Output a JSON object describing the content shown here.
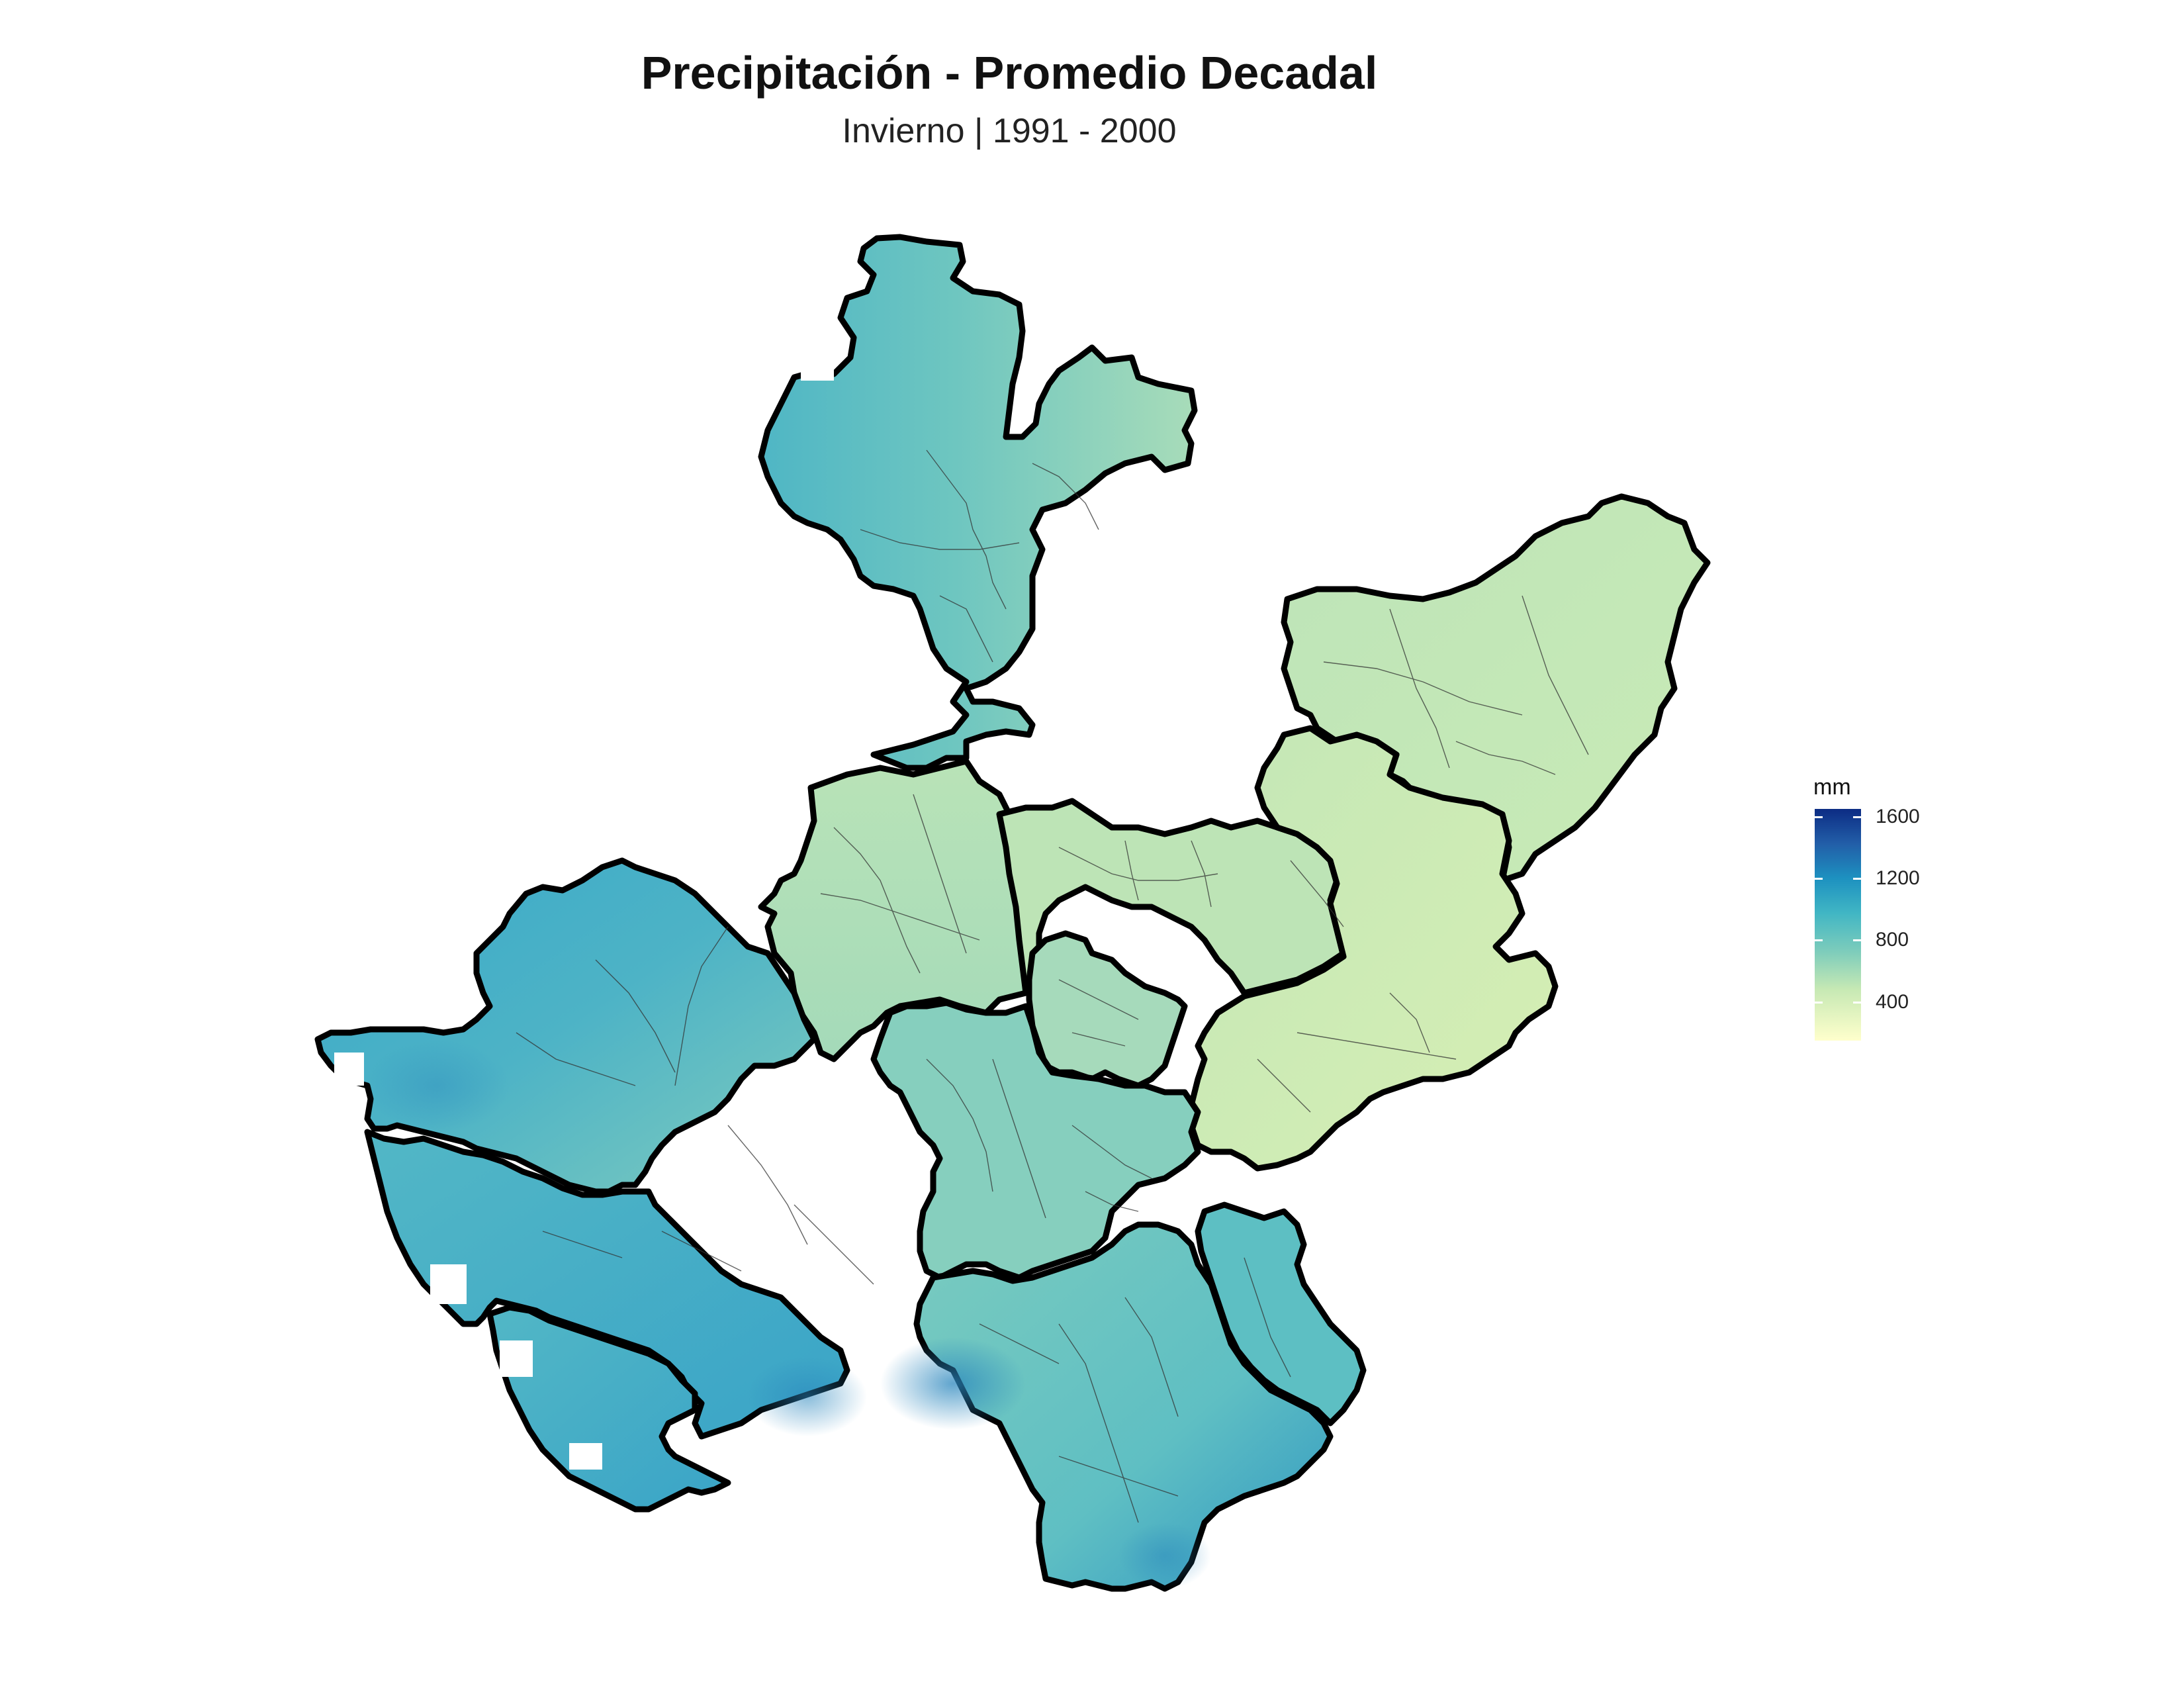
{
  "title": "Precipitación - Promedio Decadal",
  "subtitle": "Invierno | 1991 - 2000",
  "legend": {
    "title": "mm",
    "range": [
      150,
      1650
    ],
    "ticks": [
      {
        "label": "1600",
        "value": 1600
      },
      {
        "label": "1200",
        "value": 1200
      },
      {
        "label": "800",
        "value": 800
      },
      {
        "label": "400",
        "value": 400
      }
    ],
    "palette": [
      "#ffffcc",
      "#c7e9b4",
      "#7fcdbb",
      "#41b6c4",
      "#1d91c0",
      "#225ea8",
      "#0c2c84"
    ]
  },
  "map": {
    "region": "Jalisco",
    "colors": {
      "border": "#000000",
      "municipal_lines": "#333333",
      "high_precip": "#2c8fc0",
      "low_precip": "#d9f0b5"
    }
  }
}
